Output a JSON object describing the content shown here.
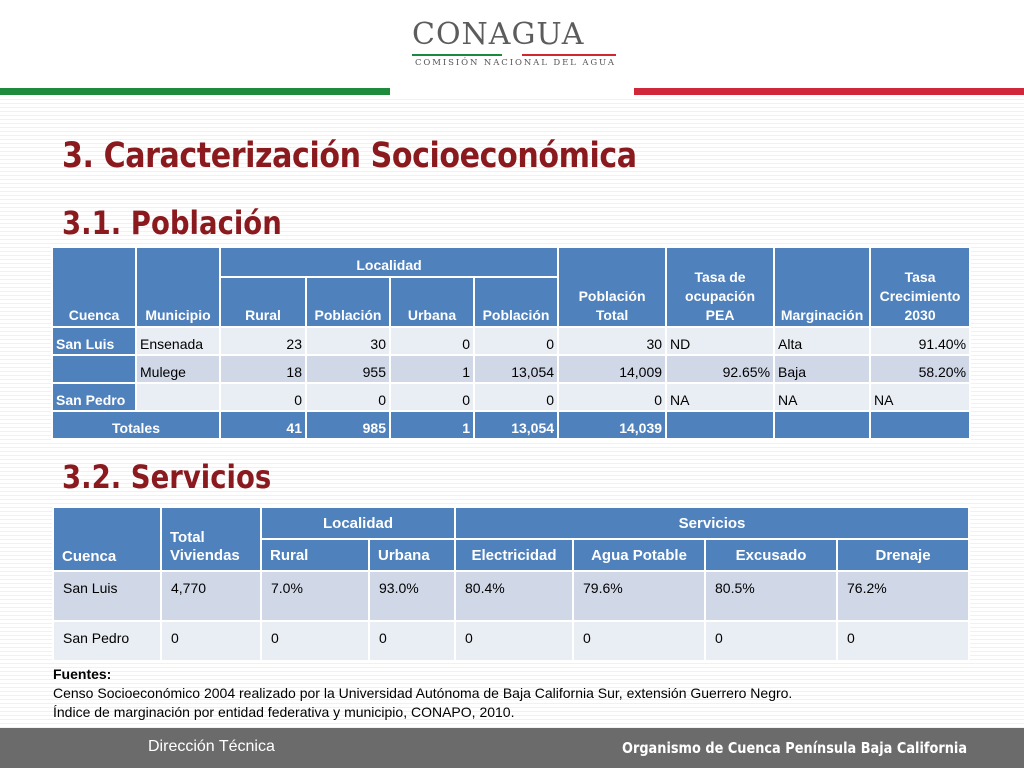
{
  "logo": {
    "name": "CONAGUA",
    "subtitle": "COMISIÓN NACIONAL DEL AGUA"
  },
  "title": "3. Caracterización Socioeconómica",
  "section1": {
    "title": "3.1. Población",
    "headers": {
      "cuenca": "Cuenca",
      "municipio": "Municipio",
      "localidad": "Localidad",
      "rural": "Rural",
      "poblacion": "Población",
      "urbana": "Urbana",
      "poblacion2": "Población",
      "poblacion_total": "Población Total",
      "tasa_ocupacion": "Tasa de ocupación PEA",
      "marginacion": "Marginación",
      "tasa_crecimiento": "Tasa Crecimiento 2030"
    },
    "rows": [
      {
        "cuenca": "San Luis",
        "municipio": "Ensenada",
        "rural": "23",
        "pob_rural": "30",
        "urbana": "0",
        "pob_urbana": "0",
        "total": "30",
        "tasa": "ND",
        "marginacion": "Alta",
        "crecimiento": "91.40%"
      },
      {
        "cuenca": "",
        "municipio": "Mulege",
        "rural": "18",
        "pob_rural": "955",
        "urbana": "1",
        "pob_urbana": "13,054",
        "total": "14,009",
        "tasa": "92.65%",
        "marginacion": "Baja",
        "crecimiento": "58.20%"
      },
      {
        "cuenca": "San Pedro",
        "municipio": "",
        "rural": "0",
        "pob_rural": "0",
        "urbana": "0",
        "pob_urbana": "0",
        "total": "0",
        "tasa": "NA",
        "marginacion": "NA",
        "crecimiento": "NA"
      }
    ],
    "totals": {
      "label": "Totales",
      "rural": "41",
      "pob_rural": "985",
      "urbana": "1",
      "pob_urbana": "13,054",
      "total": "14,039"
    }
  },
  "section2": {
    "title": "3.2. Servicios",
    "headers": {
      "cuenca": "Cuenca",
      "total_viviendas": "Total Viviendas",
      "localidad": "Localidad",
      "servicios": "Servicios",
      "rural": "Rural",
      "urbana": "Urbana",
      "electricidad": "Electricidad",
      "agua_potable": "Agua Potable",
      "excusado": "Excusado",
      "drenaje": "Drenaje"
    },
    "rows": [
      {
        "cuenca": "San Luis",
        "viviendas": "4,770",
        "rural": "7.0%",
        "urbana": "93.0%",
        "electricidad": "80.4%",
        "agua": "79.6%",
        "excusado": "80.5%",
        "drenaje": "76.2%"
      },
      {
        "cuenca": "San Pedro",
        "viviendas": "0",
        "rural": "0",
        "urbana": "0",
        "electricidad": "0",
        "agua": "0",
        "excusado": "0",
        "drenaje": "0"
      }
    ]
  },
  "sources": {
    "label": "Fuentes:",
    "lines": [
      "Censo Socioeconómico 2004 realizado por la Universidad Autónoma de Baja California Sur, extensión Guerrero Negro.",
      "Índice de marginación por entidad federativa y municipio, CONAPO, 2010."
    ]
  },
  "footer": {
    "left": "Dirección  Técnica",
    "right": "Organismo de Cuenca Península Baja California"
  },
  "colors": {
    "header_blue": "#4f81bd",
    "row_light": "#e9edf4",
    "row_dark": "#d0d8e8",
    "title_red": "#8b1a1f",
    "bar_green": "#1e8a3c",
    "bar_red": "#d0283a",
    "footer_gray": "#6b6b6b"
  }
}
